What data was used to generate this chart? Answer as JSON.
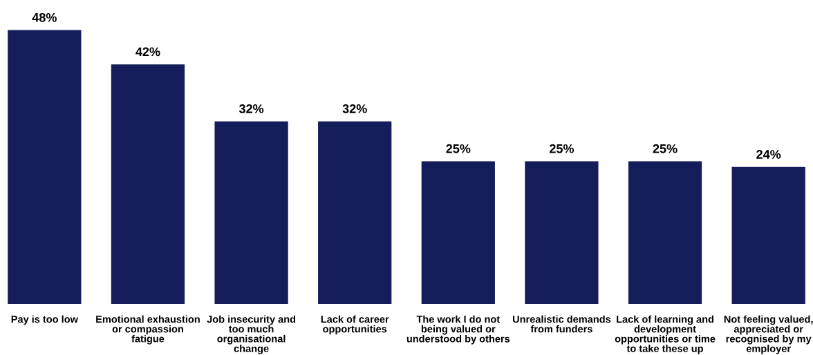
{
  "chart_data": {
    "type": "bar",
    "categories": [
      "Pay is too low",
      "Emotional exhaustion\nor compassion\nfatigue",
      "Job insecurity and\ntoo much\norganisational\nchange",
      "Lack of career\nopportunities",
      "The work I do not\nbeing valued or\nunderstood by others",
      "Unrealistic demands\nfrom funders",
      "Lack of learning and\ndevelopment\nopportunities or time\nto take these up",
      "Not feeling valued,\nappreciated or\nrecognised by my\nemployer"
    ],
    "values": [
      48,
      42,
      32,
      32,
      25,
      25,
      25,
      24
    ],
    "value_labels": [
      "48%",
      "42%",
      "32%",
      "32%",
      "25%",
      "25%",
      "25%",
      "24%"
    ],
    "color": "#141c5a",
    "grid": false
  }
}
